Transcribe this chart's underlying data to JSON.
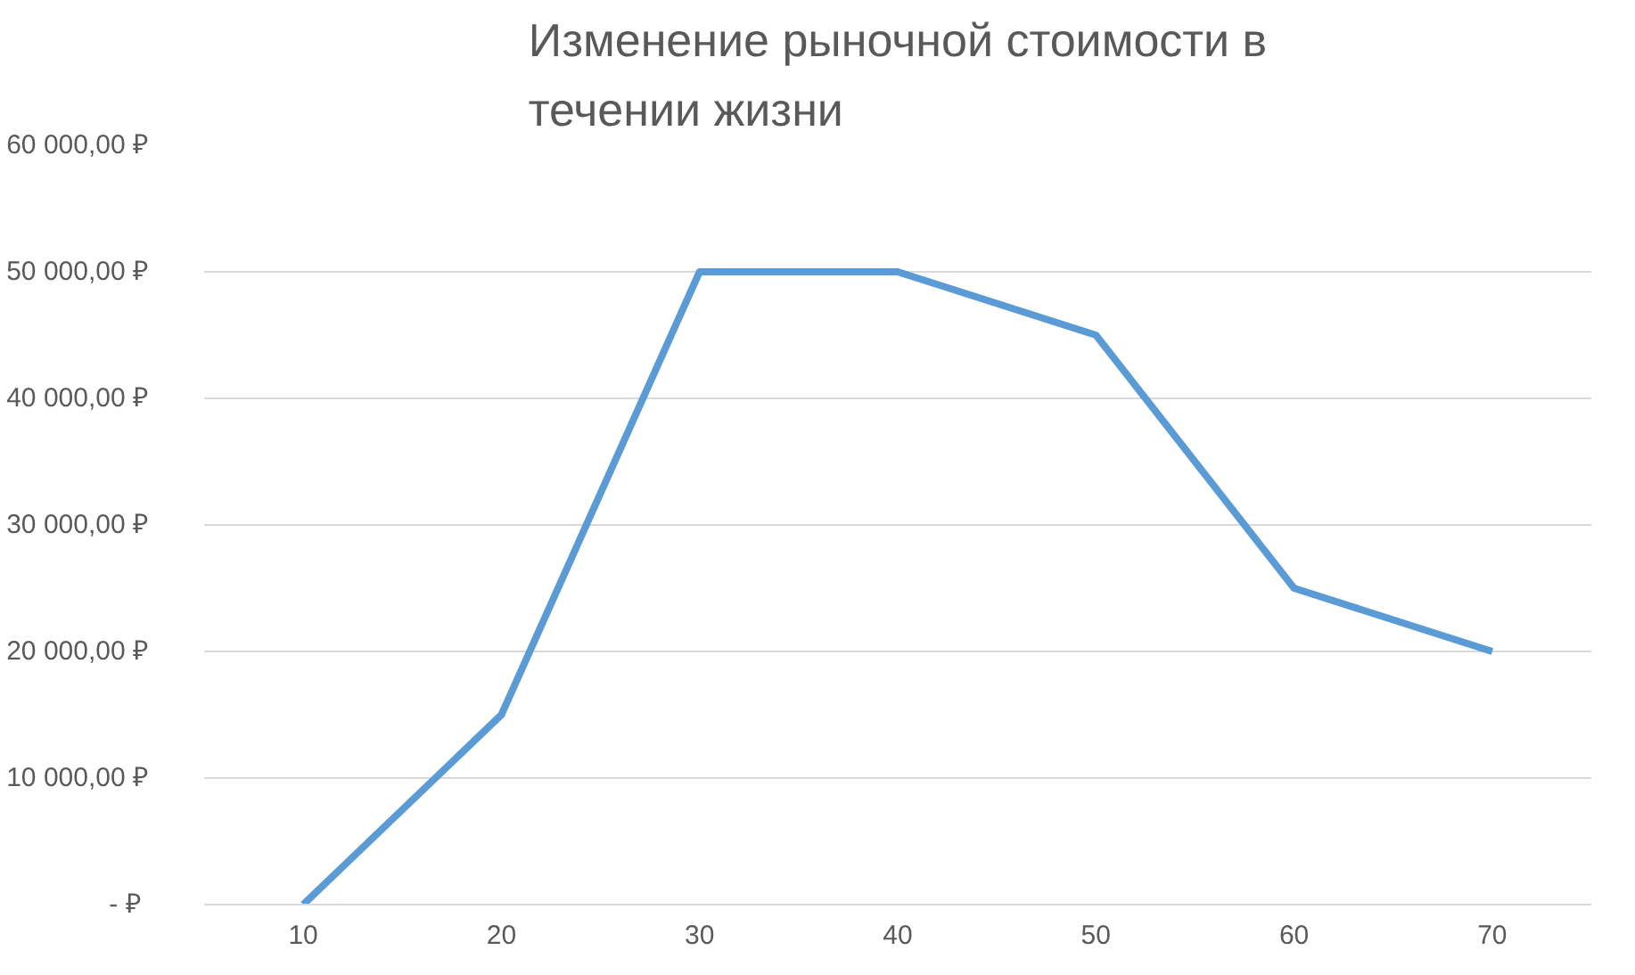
{
  "chart_data": {
    "type": "line",
    "title": "Изменение рыночной стоимости в течении жизни",
    "categories": [
      "10",
      "20",
      "30",
      "40",
      "50",
      "60",
      "70"
    ],
    "series": [
      {
        "color": "#5b9bd5",
        "values": [
          0,
          15000,
          50000,
          50000,
          45000,
          25000,
          20000
        ]
      }
    ],
    "ylim": [
      0,
      60000
    ],
    "yticks": [
      {
        "value": 0,
        "label": "-  ₽"
      },
      {
        "value": 10000,
        "label": "10 000,00 ₽"
      },
      {
        "value": 20000,
        "label": "20 000,00 ₽"
      },
      {
        "value": 30000,
        "label": "30 000,00 ₽"
      },
      {
        "value": 40000,
        "label": "40 000,00 ₽"
      },
      {
        "value": 50000,
        "label": "50 000,00 ₽"
      },
      {
        "value": 60000,
        "label": "60 000,00 ₽"
      }
    ],
    "grid": "y",
    "marker": "none",
    "line_style": "solid"
  }
}
